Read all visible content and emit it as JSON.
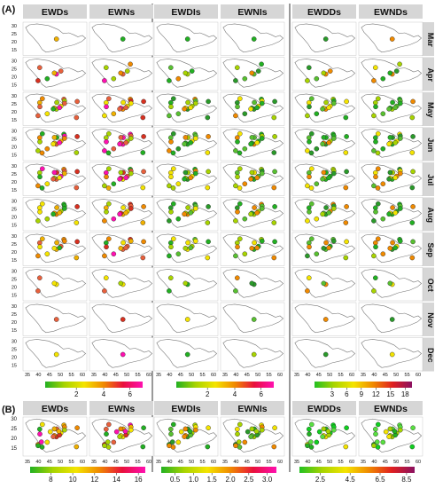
{
  "panel_labels": [
    "(A)",
    "(B)"
  ],
  "panels": [
    {
      "titles": [
        "EWDs",
        "EWNs"
      ],
      "ticks": [
        "2",
        "4",
        "6"
      ],
      "colors": [
        "#22b022",
        "#a8d400",
        "#f4e400",
        "#f08a00",
        "#e8103c",
        "#ff10b0"
      ],
      "tick_pos": [
        0.32,
        0.6,
        0.87
      ],
      "dots": "warm"
    },
    {
      "titles": [
        "EWDIs",
        "EWNIs"
      ],
      "ticks": [
        "2",
        "4",
        "6"
      ],
      "colors": [
        "#22b022",
        "#a8d400",
        "#f4e400",
        "#f08a00",
        "#e8103c",
        "#ff10b0"
      ],
      "tick_pos": [
        0.32,
        0.6,
        0.87
      ],
      "dots": "green"
    },
    {
      "titles": [
        "EWDDs",
        "EWNDs"
      ],
      "ticks": [
        "3",
        "6",
        "9",
        "12",
        "15",
        "18"
      ],
      "colors": [
        "#22c022",
        "#a8d400",
        "#f4e400",
        "#f08a00",
        "#e02020",
        "#8a1060"
      ],
      "tick_pos": [
        0.18,
        0.33,
        0.48,
        0.63,
        0.78,
        0.93
      ],
      "dots": "green"
    }
  ],
  "months": [
    "Mar",
    "Apr",
    "May",
    "Jun",
    "Jul",
    "Aug",
    "Sep",
    "Oct",
    "Nov",
    "Dec"
  ],
  "y_ticks": [
    "30",
    "25",
    "20",
    "15"
  ],
  "x_ticks": [
    "35",
    "40",
    "45",
    "50",
    "55",
    "60"
  ],
  "b_panels": [
    {
      "titles": [
        "EWDs",
        "EWNs"
      ],
      "ticks": [
        "8",
        "10",
        "12",
        "14",
        "16"
      ],
      "colors": [
        "#22b022",
        "#a8d400",
        "#f4e400",
        "#f08a00",
        "#e8103c",
        "#ff10b0"
      ],
      "tick_pos": [
        0.18,
        0.37,
        0.56,
        0.75,
        0.94
      ],
      "dots": "warm"
    },
    {
      "titles": [
        "EWDIs",
        "EWNIs"
      ],
      "ticks": [
        "0.5",
        "1.0",
        "1.5",
        "2.0",
        "2.5",
        "3.0"
      ],
      "colors": [
        "#22b022",
        "#a8d400",
        "#f4e400",
        "#f08a00",
        "#e8103c",
        "#ff10b0"
      ],
      "tick_pos": [
        0.12,
        0.28,
        0.44,
        0.6,
        0.76,
        0.92
      ],
      "dots": "green"
    },
    {
      "titles": [
        "EWDDs",
        "EWNDs"
      ],
      "ticks": [
        "2.5",
        "4.5",
        "6.5",
        "8.5"
      ],
      "colors": [
        "#22c022",
        "#a8d400",
        "#f4e400",
        "#f08a00",
        "#e02020",
        "#8a1060"
      ],
      "tick_pos": [
        0.18,
        0.44,
        0.7,
        0.93
      ],
      "dots": "bright"
    }
  ]
}
